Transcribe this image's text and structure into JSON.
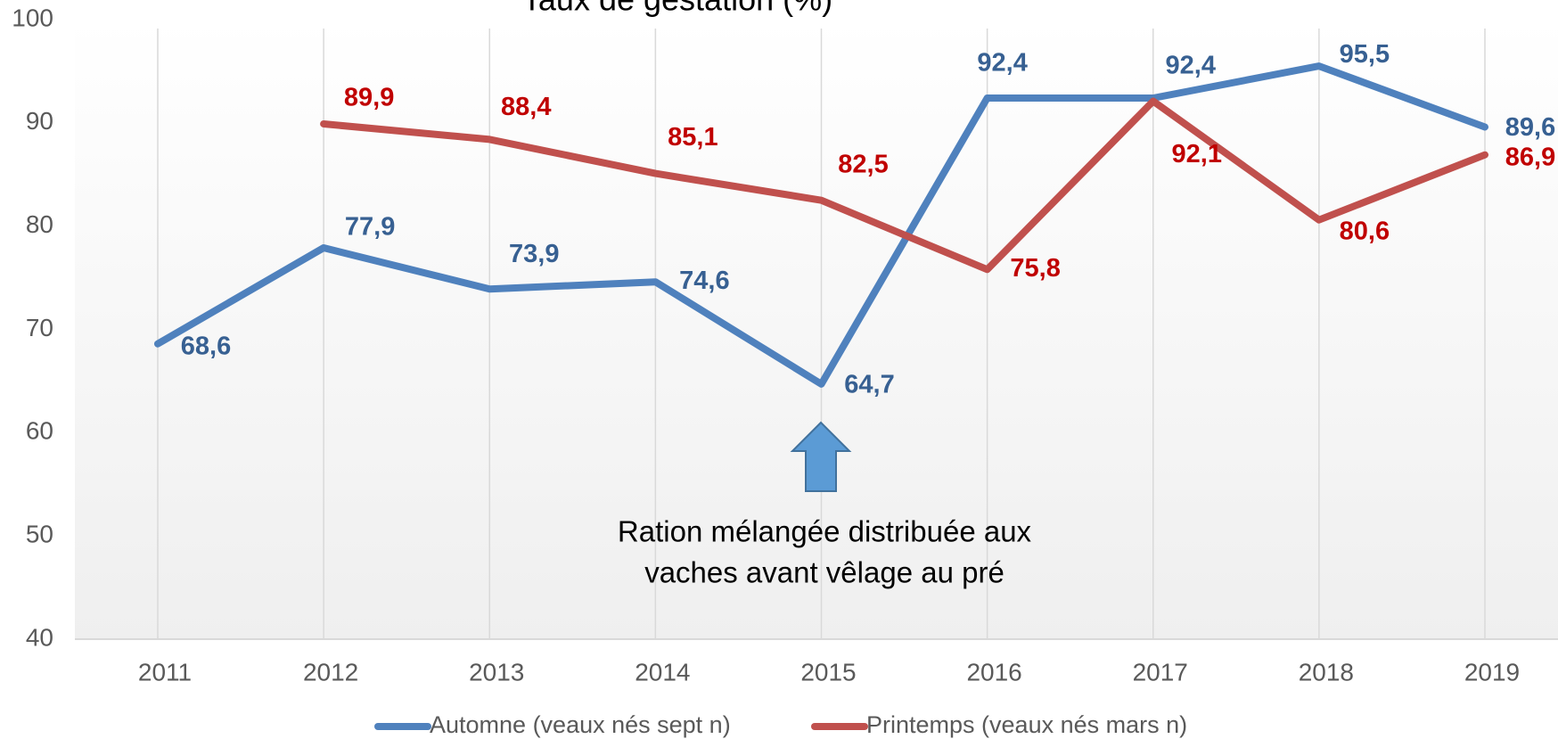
{
  "chart_data": {
    "type": "line",
    "title": "Taux de gestation (%)",
    "categories": [
      "2011",
      "2012",
      "2013",
      "2014",
      "2015",
      "2016",
      "2017",
      "2018",
      "2019"
    ],
    "series": [
      {
        "name": "Automne (veaux nés sept n)",
        "color": "#4f81bd",
        "label_color": "#376092",
        "values": [
          68.6,
          77.9,
          73.9,
          74.6,
          64.7,
          92.4,
          92.4,
          95.5,
          89.6
        ],
        "value_labels": [
          "68,6",
          "77,9",
          "73,9",
          "74,6",
          "64,7",
          "92,4",
          "92,4",
          "95,5",
          "89,6"
        ]
      },
      {
        "name": "Printemps (veaux nés mars n)",
        "color": "#c0504d",
        "label_color": "#c00000",
        "values": [
          null,
          89.9,
          88.4,
          85.1,
          82.5,
          75.8,
          92.1,
          80.6,
          86.9
        ],
        "value_labels": [
          null,
          "89,9",
          "88,4",
          "85,1",
          "82,5",
          "75,8",
          "92,1",
          "80,6",
          "86,9"
        ]
      }
    ],
    "ylim": [
      40,
      100
    ],
    "yticks": [
      40,
      50,
      60,
      70,
      80,
      90,
      100
    ],
    "grid": "vertical",
    "legend": "bottom",
    "annotation": [
      "Ration mélangée distribuée aux",
      "vaches avant vêlage au pré"
    ]
  }
}
